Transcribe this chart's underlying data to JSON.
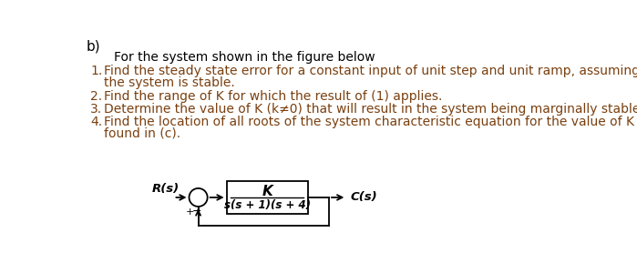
{
  "bg_color": "#ffffff",
  "text_color_dark": "#5a3e28",
  "text_color_red": "#c0392b",
  "label_b": "b)",
  "intro_line": "For the system shown in the figure below",
  "item1_line1": "Find the steady state error for a constant input of unit step and unit ramp, assuming",
  "item1_line2": "the system is stable.",
  "item2": "Find the range of K for which the result of (1) applies.",
  "item3": "Determine the value of K (k≠0) that will result in the system being marginally stable.",
  "item4_line1": "Find the location of all roots of the system characteristic equation for the value of K",
  "item4_line2": "found in (c).",
  "block_tf_num": "K",
  "block_tf_den": "s(s + 1)(s + 4)",
  "label_rs": "R(s)",
  "label_cs": "C(s)",
  "font_size_main": 10.5,
  "font_size_b": 11,
  "diagram_color": "#000000",
  "text_brown": "#5c3317",
  "text_orange_red": "#b5451b"
}
